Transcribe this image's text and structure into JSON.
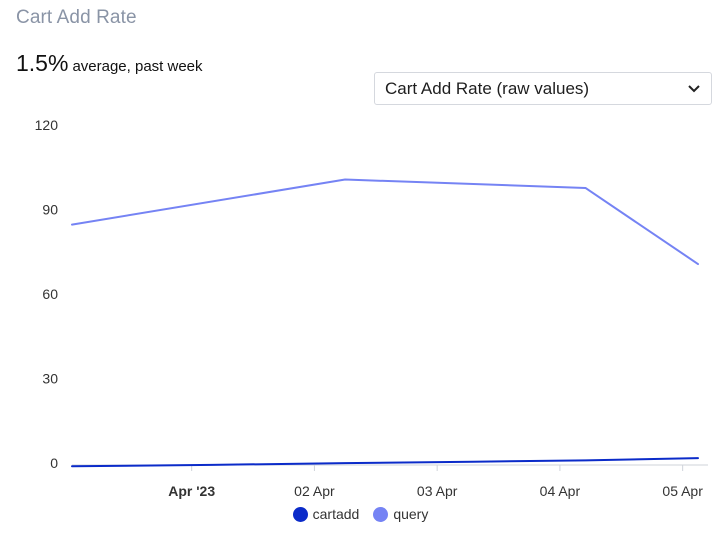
{
  "header": {
    "title": "Cart Add Rate",
    "stat_value": "1.5%",
    "stat_caption": "average, past week"
  },
  "dropdown": {
    "selected": "Cart Add Rate (raw values)",
    "icon": "chevron-down-icon"
  },
  "chart_data": {
    "type": "line",
    "title": "",
    "xlabel": "",
    "ylabel": "",
    "x_ticks": [
      "Apr '23",
      "02 Apr",
      "03 Apr",
      "04 Apr",
      "05 Apr"
    ],
    "y_ticks": [
      0,
      30,
      60,
      90,
      120
    ],
    "ylim": [
      0,
      120
    ],
    "xlim": [
      "2023-03-31T00:36",
      "2023-04-05T03:00"
    ],
    "grid": false,
    "legend_position": "bottom",
    "series": [
      {
        "name": "cartadd",
        "color": "#0b2bc9",
        "x": [
          "2023-03-31T00:36",
          "2023-04-01T04:00",
          "2023-04-02T06:00",
          "2023-04-03T07:00",
          "2023-04-04T05:00",
          "2023-04-05T03:00"
        ],
        "values": [
          -0.8,
          -0.3,
          0.3,
          0.8,
          1.3,
          2.1
        ]
      },
      {
        "name": "query",
        "color": "#7583f4",
        "x": [
          "2023-03-31T00:36",
          "2023-04-02T06:00",
          "2023-04-04T05:00",
          "2023-04-05T03:00"
        ],
        "values": [
          85,
          101,
          98,
          71
        ]
      }
    ]
  }
}
